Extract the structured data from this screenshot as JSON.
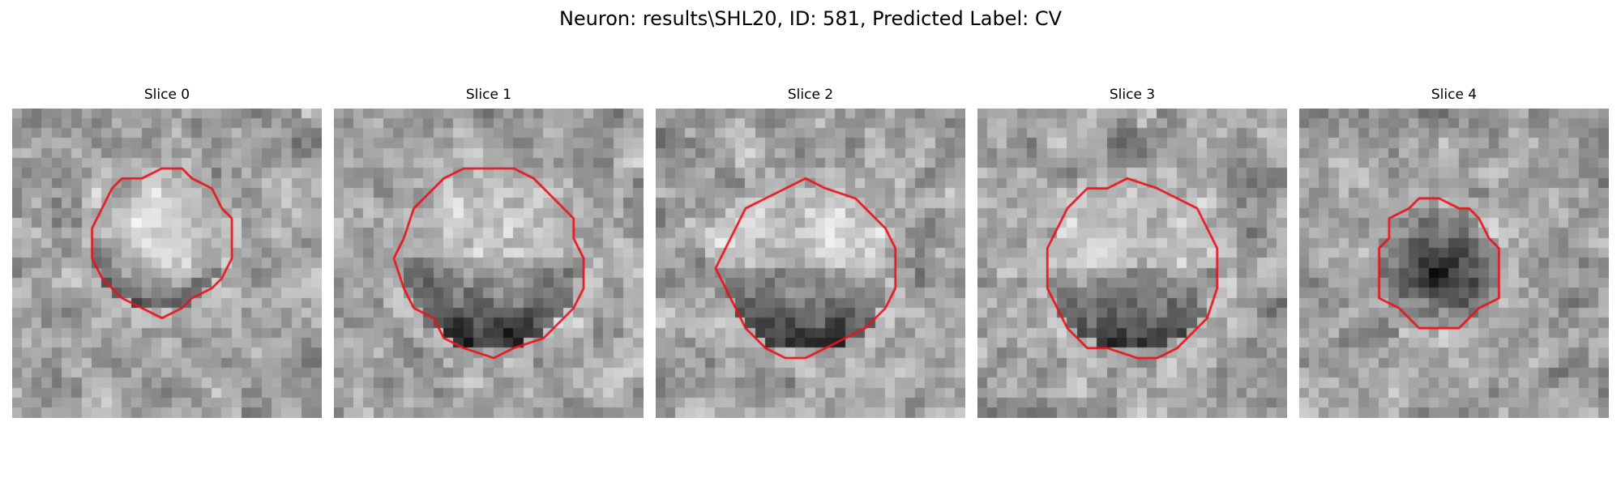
{
  "figure": {
    "title": "Neuron: results\\SHL20, ID: 581, Predicted Label: CV"
  },
  "panels": [
    {
      "title": "Slice 0",
      "seed": 11,
      "center": [
        0.48,
        0.43
      ],
      "radius": 0.22,
      "intensity": "bright-core",
      "contour_color": "#e8141b"
    },
    {
      "title": "Slice 1",
      "seed": 23,
      "center": [
        0.51,
        0.49
      ],
      "radius": 0.29,
      "intensity": "bright-top-dark-bottom",
      "contour_color": "#e8141b"
    },
    {
      "title": "Slice 2",
      "seed": 37,
      "center": [
        0.49,
        0.52
      ],
      "radius": 0.27,
      "intensity": "bright-top-dark-bottom",
      "contour_color": "#e8141b"
    },
    {
      "title": "Slice 3",
      "seed": 41,
      "center": [
        0.5,
        0.52
      ],
      "radius": 0.27,
      "intensity": "bright-top-dark-bottom",
      "contour_color": "#e8141b"
    },
    {
      "title": "Slice 4",
      "seed": 53,
      "center": [
        0.45,
        0.51
      ],
      "radius": 0.2,
      "intensity": "dark-core",
      "contour_color": "#e8141b"
    }
  ]
}
